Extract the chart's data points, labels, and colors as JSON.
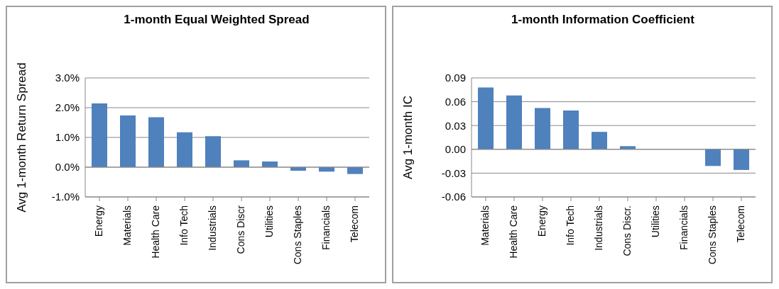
{
  "chart_data": [
    {
      "type": "bar",
      "title": "1-month Equal Weighted Spread",
      "ylabel": "Avg 1-month Return Spread",
      "categories": [
        "Energy",
        "Materials",
        "Health Care",
        "Info Tech",
        "Industrials",
        "Cons Discr",
        "Utilities",
        "Cons Staples",
        "Financials",
        "Telecom"
      ],
      "values": [
        2.14,
        1.74,
        1.68,
        1.17,
        1.04,
        0.23,
        0.19,
        -0.12,
        -0.15,
        -0.23
      ],
      "color": "#4f81bd",
      "ylim": [
        -1,
        3
      ],
      "yticks": [
        {
          "value": -1,
          "label": "-1.0%"
        },
        {
          "value": 0,
          "label": "0.0%"
        },
        {
          "value": 1,
          "label": "1.0%"
        },
        {
          "value": 2,
          "label": "2.0%"
        },
        {
          "value": 3,
          "label": "3.0%"
        }
      ],
      "grid": "y",
      "legend": false
    },
    {
      "type": "bar",
      "title": "1-month Information Coefficient",
      "ylabel": "Avg 1-month IC",
      "categories": [
        "Materials",
        "Health Care",
        "Energy",
        "Info Tech",
        "Industrials",
        "Cons Discr.",
        "Utilities",
        "Financials",
        "Cons Staples",
        "Telecom"
      ],
      "values": [
        0.078,
        0.068,
        0.052,
        0.049,
        0.022,
        0.004,
        0,
        0,
        -0.021,
        -0.026
      ],
      "color": "#4f81bd",
      "ylim": [
        -0.06,
        0.09
      ],
      "yticks": [
        -0.06,
        -0.03,
        {
          "value": 0,
          "label": "0.00"
        },
        0.03,
        0.06,
        0.09
      ],
      "grid": "y",
      "legend": false
    }
  ]
}
